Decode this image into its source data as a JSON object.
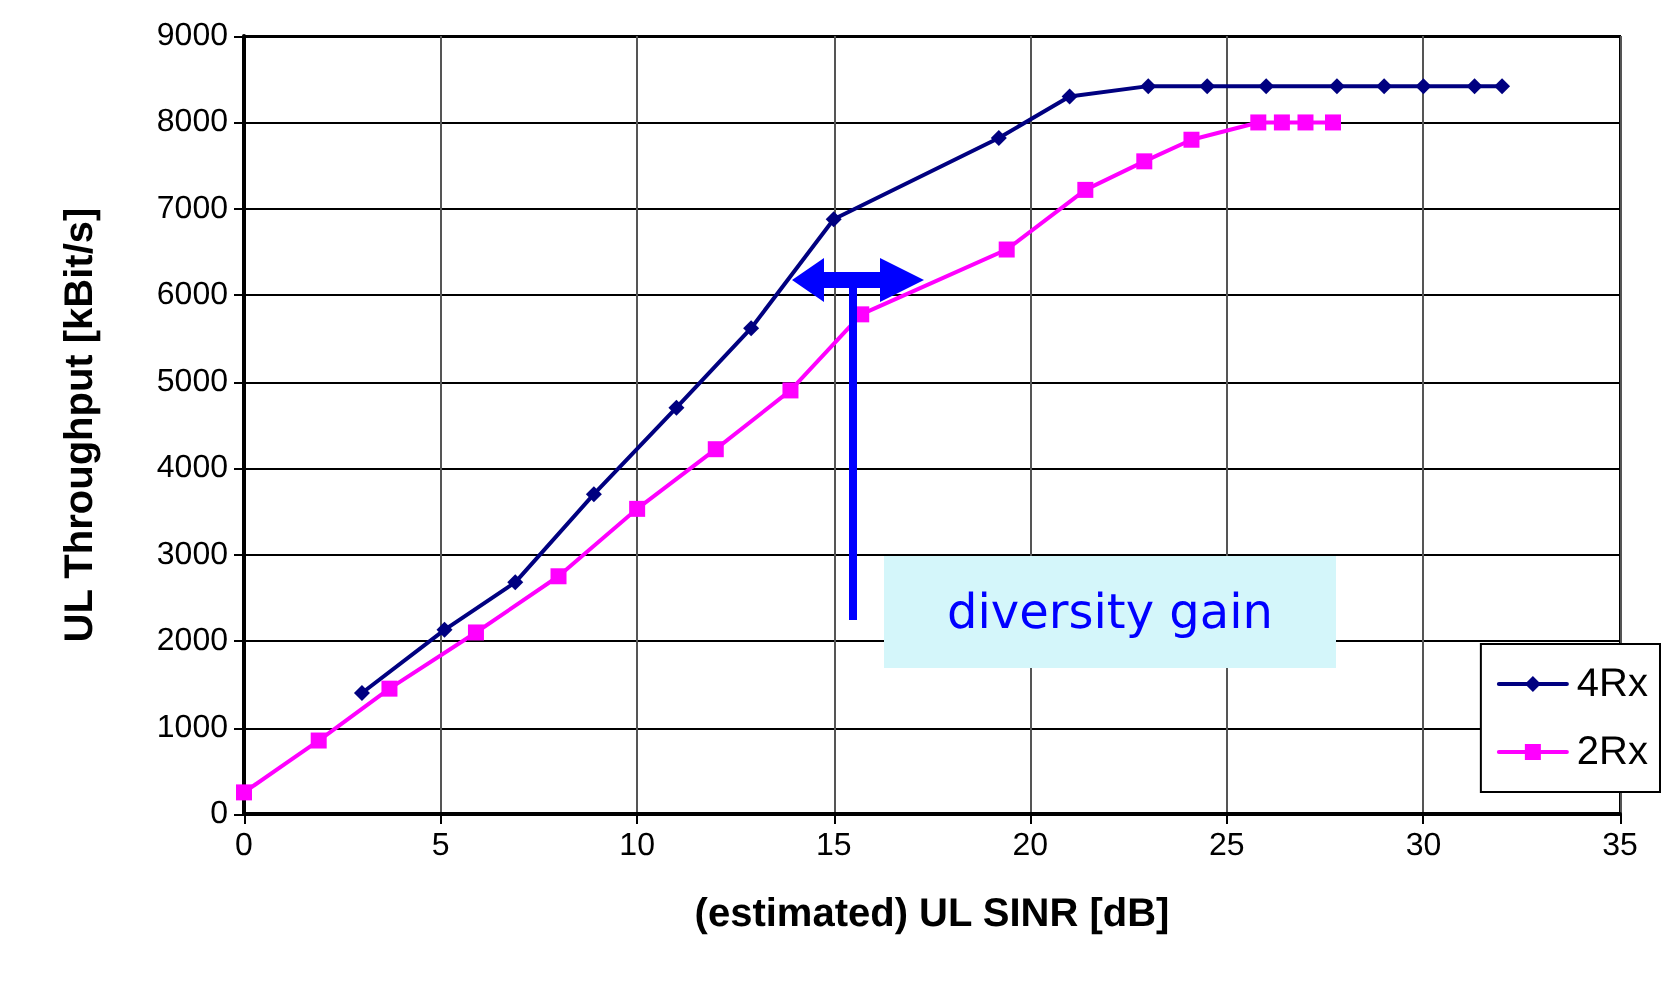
{
  "chart_data": {
    "type": "line",
    "xlabel": "(estimated) UL SINR [dB]",
    "ylabel": "UL Throughput [kBit/s]",
    "annotations": [
      "diversity gain"
    ],
    "series": [
      {
        "name": "4Rx",
        "color": "#000080",
        "marker": "diamond",
        "x": [
          3,
          5.1,
          6.9,
          8.9,
          11,
          12.9,
          15,
          19.2,
          21,
          23,
          24.5,
          26,
          27.8,
          29,
          30,
          31.3,
          32
        ],
        "values": [
          1400,
          2130,
          2680,
          3700,
          4700,
          5620,
          6880,
          7820,
          8300,
          8420,
          8420,
          8420,
          8420,
          8420,
          8420,
          8420,
          8420
        ]
      },
      {
        "name": "2Rx",
        "color": "#ff00ff",
        "marker": "square",
        "x": [
          0,
          1.9,
          3.7,
          5.9,
          8,
          10,
          12,
          13.9,
          15.7,
          19.4,
          21.4,
          22.9,
          24.1,
          25.8,
          26.4,
          27,
          27.7
        ],
        "values": [
          250,
          850,
          1450,
          2100,
          2750,
          3530,
          4220,
          4900,
          5780,
          6530,
          7220,
          7550,
          7800,
          8000,
          8000,
          8000,
          8000
        ]
      }
    ],
    "xlim": [
      0,
      35
    ],
    "xticks": [
      0,
      5,
      10,
      15,
      20,
      25,
      30,
      35
    ],
    "ylim": [
      0,
      9000
    ],
    "yticks": [
      0,
      1000,
      2000,
      3000,
      4000,
      5000,
      6000,
      7000,
      8000,
      9000
    ],
    "grid": true,
    "legend": "bottom right",
    "line_style": "solid"
  }
}
